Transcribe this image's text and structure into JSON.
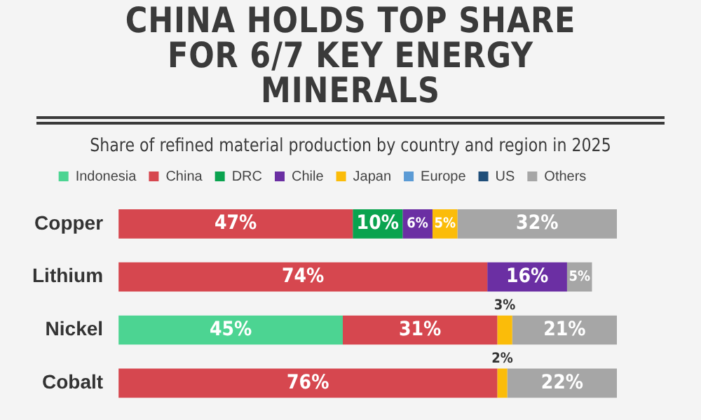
{
  "chart_data": {
    "type": "bar",
    "orientation": "horizontal",
    "stacked": true,
    "title": "CHINA HOLDS TOP SHARE FOR 6/7 KEY ENERGY MINERALS",
    "subtitle": "Share of refined material production by country and region in 2025",
    "categories": [
      "Copper",
      "Lithium",
      "Nickel",
      "Cobalt"
    ],
    "series": [
      {
        "name": "Indonesia",
        "color": "#4cd492",
        "values": [
          null,
          null,
          45,
          null
        ],
        "value_labels": [
          null,
          null,
          "45%",
          null
        ]
      },
      {
        "name": "China",
        "color": "#d6474f",
        "values": [
          47,
          74,
          31,
          76
        ],
        "value_labels": [
          "47%",
          "74%",
          "31%",
          "76%"
        ]
      },
      {
        "name": "DRC",
        "color": "#0aa34f",
        "values": [
          10,
          null,
          null,
          null
        ],
        "value_labels": [
          "10%",
          null,
          null,
          null
        ]
      },
      {
        "name": "Chile",
        "color": "#6b2fa3",
        "values": [
          6,
          16,
          null,
          null
        ],
        "value_labels": [
          "6%",
          "16%",
          null,
          null
        ]
      },
      {
        "name": "Japan",
        "color": "#fbbc09",
        "values": [
          5,
          null,
          3,
          2
        ],
        "value_labels": [
          "5%",
          null,
          "3%",
          "2%"
        ]
      },
      {
        "name": "Europe",
        "color": "#5b9bd5",
        "values": [
          null,
          null,
          null,
          null
        ]
      },
      {
        "name": "US",
        "color": "#1f4e79",
        "values": [
          null,
          null,
          null,
          null
        ]
      },
      {
        "name": "Others",
        "color": "#a6a6a6",
        "values": [
          32,
          5,
          21,
          22
        ],
        "value_labels": [
          "32%",
          "5%",
          "21%",
          "22%"
        ]
      }
    ],
    "legend": "top",
    "tick_labels": "y",
    "grid": false
  }
}
